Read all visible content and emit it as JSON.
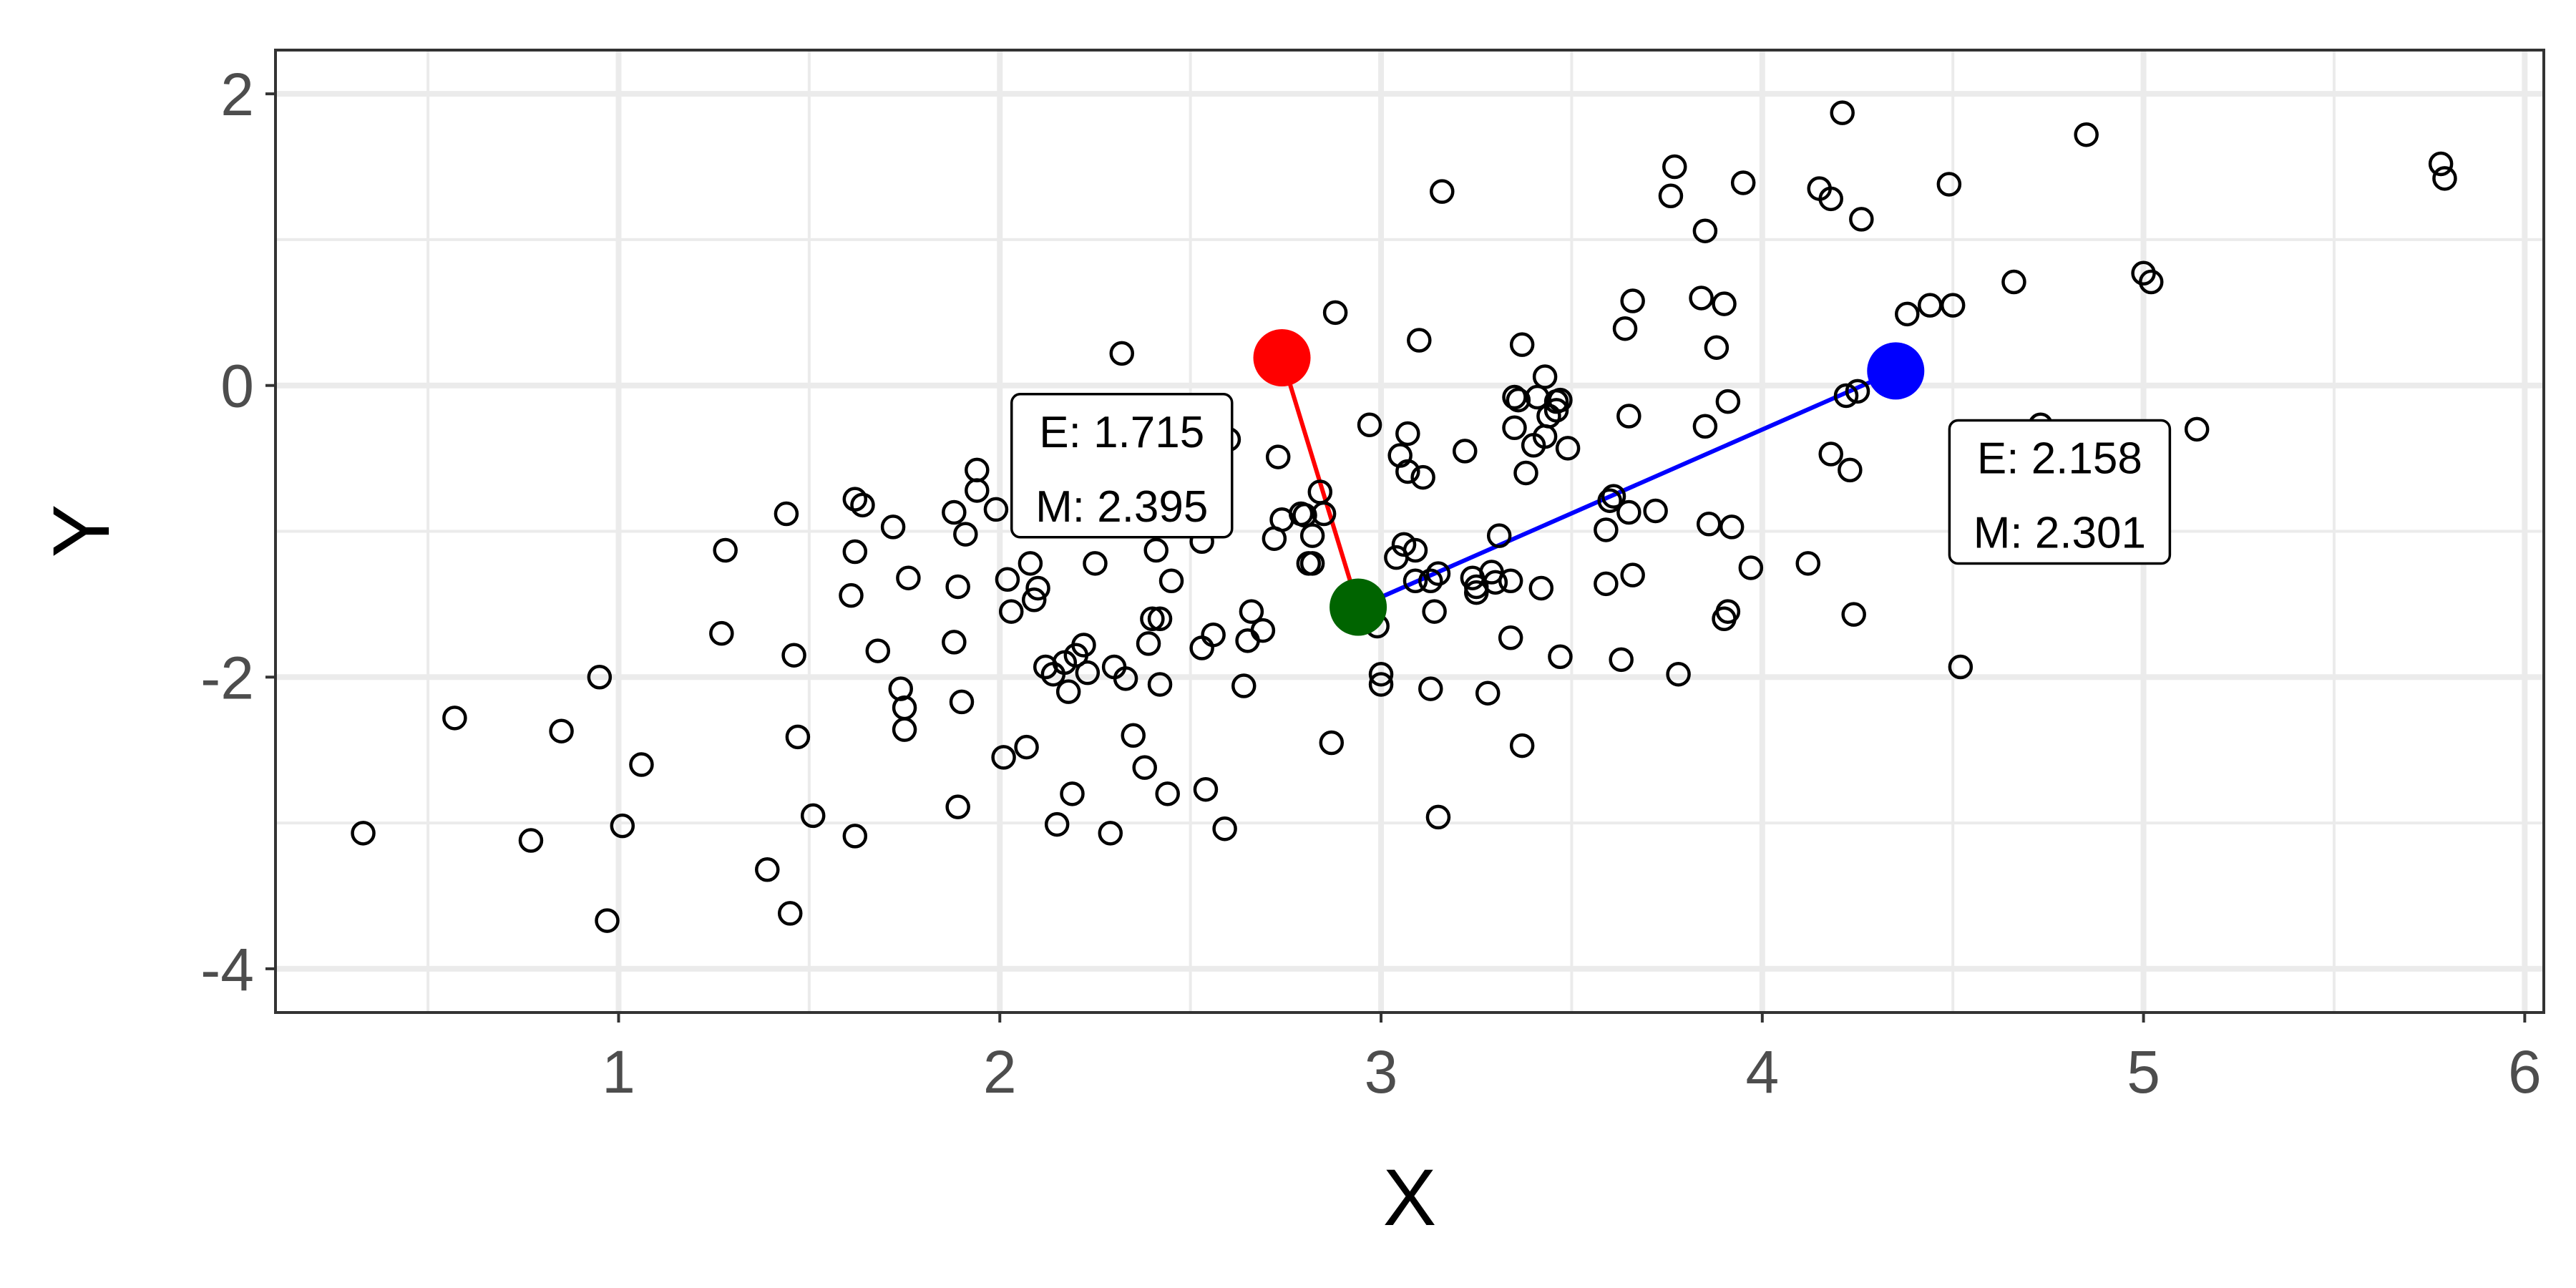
{
  "chart_data": {
    "type": "scatter",
    "title": "",
    "xlabel": "X",
    "ylabel": "Y",
    "xlim": [
      0.1,
      6.05
    ],
    "ylim": [
      -4.3,
      2.3
    ],
    "x_ticks": [
      1,
      2,
      3,
      4,
      5,
      6
    ],
    "y_ticks": [
      -4,
      -2,
      0,
      2
    ],
    "x_tick_labels": [
      "1",
      "2",
      "3",
      "4",
      "5",
      "6"
    ],
    "y_tick_labels": [
      "-4",
      "-2",
      "0",
      "2"
    ],
    "grid": true,
    "points": [
      [
        0.33,
        -3.07
      ],
      [
        0.57,
        -2.28
      ],
      [
        0.77,
        -3.12
      ],
      [
        0.85,
        -2.37
      ],
      [
        0.95,
        -2.0
      ],
      [
        0.97,
        -3.67
      ],
      [
        1.01,
        -3.02
      ],
      [
        1.06,
        -2.6
      ],
      [
        1.27,
        -1.7
      ],
      [
        1.28,
        -1.13
      ],
      [
        1.39,
        -3.32
      ],
      [
        1.44,
        -0.88
      ],
      [
        1.45,
        -3.62
      ],
      [
        1.46,
        -1.85
      ],
      [
        1.47,
        -2.41
      ],
      [
        1.51,
        -2.95
      ],
      [
        1.61,
        -1.44
      ],
      [
        1.62,
        -0.78
      ],
      [
        1.62,
        -3.09
      ],
      [
        1.62,
        -1.14
      ],
      [
        1.64,
        -0.82
      ],
      [
        1.68,
        -1.82
      ],
      [
        1.72,
        -0.97
      ],
      [
        1.74,
        -2.08
      ],
      [
        1.75,
        -2.21
      ],
      [
        1.75,
        -2.36
      ],
      [
        1.76,
        -1.32
      ],
      [
        1.88,
        -0.87
      ],
      [
        1.88,
        -1.76
      ],
      [
        1.89,
        -2.89
      ],
      [
        1.89,
        -1.38
      ],
      [
        1.9,
        -2.17
      ],
      [
        1.91,
        -1.02
      ],
      [
        1.94,
        -0.58
      ],
      [
        1.94,
        -0.72
      ],
      [
        1.99,
        -0.85
      ],
      [
        2.01,
        -2.55
      ],
      [
        2.02,
        -1.33
      ],
      [
        2.03,
        -1.55
      ],
      [
        2.07,
        -2.48
      ],
      [
        2.08,
        -1.22
      ],
      [
        2.09,
        -1.47
      ],
      [
        2.1,
        -1.39
      ],
      [
        2.12,
        -1.93
      ],
      [
        2.14,
        -1.98
      ],
      [
        2.15,
        -3.01
      ],
      [
        2.17,
        -1.9
      ],
      [
        2.18,
        -2.1
      ],
      [
        2.19,
        -2.8
      ],
      [
        2.2,
        -1.85
      ],
      [
        2.22,
        -1.78
      ],
      [
        2.23,
        -1.97
      ],
      [
        2.25,
        -1.22
      ],
      [
        2.29,
        -3.07
      ],
      [
        2.3,
        -1.93
      ],
      [
        2.32,
        0.22
      ],
      [
        2.33,
        -2.01
      ],
      [
        2.35,
        -2.4
      ],
      [
        2.38,
        -2.62
      ],
      [
        2.39,
        -1.77
      ],
      [
        2.4,
        -1.6
      ],
      [
        2.41,
        -1.13
      ],
      [
        2.42,
        -1.6
      ],
      [
        2.42,
        -2.05
      ],
      [
        2.44,
        -2.8
      ],
      [
        2.45,
        -1.34
      ],
      [
        2.53,
        -1.07
      ],
      [
        2.53,
        -1.8
      ],
      [
        2.54,
        -2.77
      ],
      [
        2.56,
        -1.71
      ],
      [
        2.59,
        -3.04
      ],
      [
        2.6,
        -0.37
      ],
      [
        2.64,
        -2.06
      ],
      [
        2.65,
        -1.75
      ],
      [
        2.66,
        -1.55
      ],
      [
        2.69,
        -1.68
      ],
      [
        2.72,
        -1.05
      ],
      [
        2.73,
        -0.49
      ],
      [
        2.74,
        -0.92
      ],
      [
        2.79,
        -0.88
      ],
      [
        2.8,
        -0.89
      ],
      [
        2.81,
        -1.22
      ],
      [
        2.82,
        -1.22
      ],
      [
        2.82,
        -1.03
      ],
      [
        2.84,
        -0.73
      ],
      [
        2.85,
        -0.88
      ],
      [
        2.87,
        -2.45
      ],
      [
        2.88,
        0.5
      ],
      [
        2.97,
        -0.27
      ],
      [
        2.99,
        -1.65
      ],
      [
        3.0,
        -1.98
      ],
      [
        3.0,
        -2.05
      ],
      [
        3.04,
        -1.18
      ],
      [
        3.05,
        -0.48
      ],
      [
        3.06,
        -1.09
      ],
      [
        3.07,
        -0.59
      ],
      [
        3.07,
        -0.33
      ],
      [
        3.09,
        -1.13
      ],
      [
        3.09,
        -1.34
      ],
      [
        3.1,
        0.31
      ],
      [
        3.11,
        -0.63
      ],
      [
        3.13,
        -1.34
      ],
      [
        3.13,
        -2.08
      ],
      [
        3.14,
        -1.55
      ],
      [
        3.15,
        -1.29
      ],
      [
        3.15,
        -2.96
      ],
      [
        3.16,
        1.33
      ],
      [
        3.22,
        -0.45
      ],
      [
        3.24,
        -1.32
      ],
      [
        3.25,
        -1.38
      ],
      [
        3.25,
        -1.42
      ],
      [
        3.28,
        -2.11
      ],
      [
        3.29,
        -1.28
      ],
      [
        3.3,
        -1.35
      ],
      [
        3.31,
        -1.03
      ],
      [
        3.34,
        -1.73
      ],
      [
        3.34,
        -1.34
      ],
      [
        3.35,
        -0.08
      ],
      [
        3.35,
        -0.29
      ],
      [
        3.36,
        -0.1
      ],
      [
        3.37,
        0.28
      ],
      [
        3.37,
        -2.47
      ],
      [
        3.38,
        -0.6
      ],
      [
        3.4,
        -0.41
      ],
      [
        3.41,
        -0.08
      ],
      [
        3.42,
        -1.39
      ],
      [
        3.43,
        0.06
      ],
      [
        3.43,
        -0.35
      ],
      [
        3.44,
        -0.21
      ],
      [
        3.46,
        -0.17
      ],
      [
        3.46,
        -0.11
      ],
      [
        3.47,
        -1.86
      ],
      [
        3.47,
        -0.1
      ],
      [
        3.49,
        -0.43
      ],
      [
        3.59,
        -0.99
      ],
      [
        3.59,
        -1.36
      ],
      [
        3.6,
        -0.79
      ],
      [
        3.61,
        -0.76
      ],
      [
        3.63,
        -1.88
      ],
      [
        3.64,
        0.39
      ],
      [
        3.65,
        -0.21
      ],
      [
        3.65,
        -0.87
      ],
      [
        3.66,
        0.58
      ],
      [
        3.66,
        -1.3
      ],
      [
        3.72,
        -0.86
      ],
      [
        3.76,
        1.3
      ],
      [
        3.77,
        1.5
      ],
      [
        3.78,
        -1.98
      ],
      [
        3.84,
        0.6
      ],
      [
        3.85,
        1.06
      ],
      [
        3.85,
        -0.28
      ],
      [
        3.86,
        -0.95
      ],
      [
        3.88,
        0.26
      ],
      [
        3.9,
        0.56
      ],
      [
        3.9,
        -1.6
      ],
      [
        3.91,
        -1.55
      ],
      [
        3.91,
        -0.11
      ],
      [
        3.92,
        -0.97
      ],
      [
        3.95,
        1.39
      ],
      [
        3.97,
        -1.25
      ],
      [
        4.12,
        -1.22
      ],
      [
        4.15,
        1.35
      ],
      [
        4.18,
        1.28
      ],
      [
        4.18,
        -0.47
      ],
      [
        4.21,
        1.87
      ],
      [
        4.22,
        -0.07
      ],
      [
        4.23,
        -0.58
      ],
      [
        4.24,
        -1.57
      ],
      [
        4.25,
        -0.04
      ],
      [
        4.26,
        1.14
      ],
      [
        4.38,
        0.49
      ],
      [
        4.44,
        0.55
      ],
      [
        4.49,
        1.38
      ],
      [
        4.5,
        0.55
      ],
      [
        4.52,
        -1.93
      ],
      [
        4.66,
        0.71
      ],
      [
        4.73,
        -0.27
      ],
      [
        4.85,
        1.72
      ],
      [
        5.0,
        0.77
      ],
      [
        5.02,
        0.71
      ],
      [
        5.14,
        -0.3
      ],
      [
        5.78,
        1.52
      ],
      [
        5.79,
        1.42
      ]
    ],
    "highlight_points": [
      {
        "color": "#ff0000",
        "x": 2.74,
        "y": 0.19
      },
      {
        "color": "#006400",
        "x": 2.94,
        "y": -1.52
      },
      {
        "color": "#0000ff",
        "x": 4.35,
        "y": 0.1
      }
    ],
    "segments": [
      {
        "color": "#ff0000",
        "from": [
          2.74,
          0.19
        ],
        "to": [
          2.94,
          -1.52
        ]
      },
      {
        "color": "#0000ff",
        "from": [
          2.94,
          -1.52
        ],
        "to": [
          4.35,
          0.1
        ]
      }
    ],
    "annotations": [
      {
        "x": 2.32,
        "y": -0.55,
        "lines": [
          "E: 1.715",
          "M: 2.395"
        ]
      },
      {
        "x": 4.78,
        "y": -0.73,
        "lines": [
          "E: 2.158",
          "M: 2.301"
        ]
      }
    ]
  }
}
